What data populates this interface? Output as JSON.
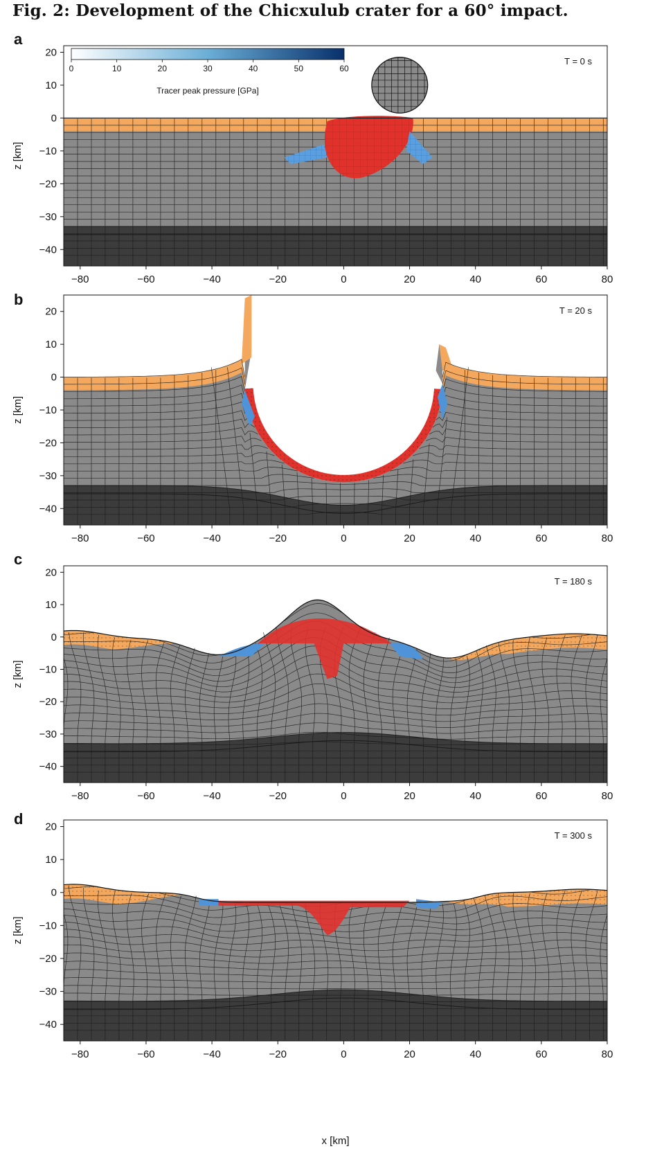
{
  "figure": {
    "title": "Fig. 2: Development of the Chicxulub crater for a 60° impact.",
    "x_label": "x [km]",
    "y_label": "z [km]"
  },
  "colors": {
    "background_rock": "#8a8a8a",
    "sediment": "#f4a85e",
    "mantle": "#3c3c3c",
    "grid_line": "#1a1a1a",
    "high_pressure": "#e1312b",
    "medium_pressure": "#4f93d8",
    "colorbar_start": "#ffffff",
    "colorbar_end": "#08306b"
  },
  "colorbar": {
    "label": "Tracer peak pressure [GPa]",
    "ticks": [
      "0",
      "10",
      "20",
      "30",
      "40",
      "50",
      "60"
    ]
  },
  "chart_data": [
    {
      "panel": "a",
      "time": "T = 0 s",
      "type": "heatmap",
      "x_ticks": [
        "−80",
        "−60",
        "−40",
        "−20",
        "0",
        "20",
        "40",
        "60",
        "80"
      ],
      "y_ticks": [
        "20",
        "10",
        "0",
        "−10",
        "−20",
        "−30",
        "−40"
      ],
      "xlim": [
        -85,
        80
      ],
      "ylim": [
        -45,
        22
      ],
      "projectile_center_km": [
        17,
        10
      ],
      "projectile_radius_km": 8.5
    },
    {
      "panel": "b",
      "time": "T = 20 s",
      "type": "heatmap",
      "x_ticks": [
        "−80",
        "−60",
        "−40",
        "−20",
        "0",
        "20",
        "40",
        "60",
        "80"
      ],
      "y_ticks": [
        "20",
        "10",
        "0",
        "−10",
        "−20",
        "−30",
        "−40"
      ],
      "xlim": [
        -85,
        80
      ],
      "ylim": [
        -45,
        25
      ]
    },
    {
      "panel": "c",
      "time": "T = 180 s",
      "type": "heatmap",
      "x_ticks": [
        "−80",
        "−60",
        "−40",
        "−20",
        "0",
        "20",
        "40",
        "60",
        "80"
      ],
      "y_ticks": [
        "20",
        "10",
        "0",
        "−10",
        "−20",
        "−30",
        "−40"
      ],
      "xlim": [
        -85,
        80
      ],
      "ylim": [
        -45,
        22
      ]
    },
    {
      "panel": "d",
      "time": "T = 300 s",
      "type": "heatmap",
      "x_ticks": [
        "−80",
        "−60",
        "−40",
        "−20",
        "0",
        "20",
        "40",
        "60",
        "80"
      ],
      "y_ticks": [
        "20",
        "10",
        "0",
        "−10",
        "−20",
        "−30",
        "−40"
      ],
      "xlim": [
        -85,
        80
      ],
      "ylim": [
        -45,
        22
      ]
    }
  ]
}
